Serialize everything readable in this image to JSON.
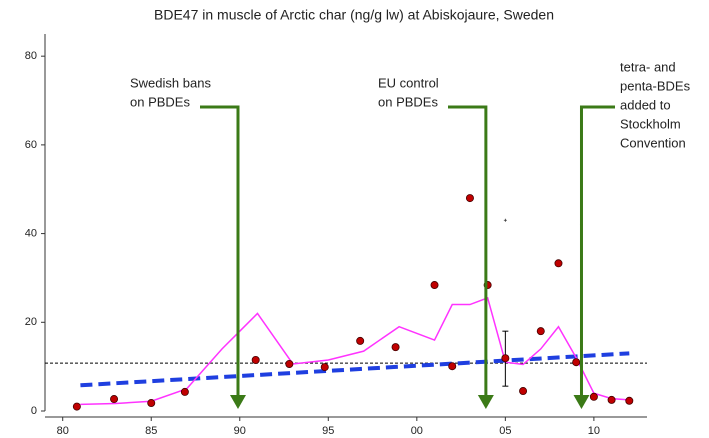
{
  "chart_data": {
    "type": "scatter",
    "title": "BDE47 in muscle of Arctic char (ng/g lw) at Abiskojaure, Sweden",
    "xlim": [
      1979,
      2013
    ],
    "xticks": [
      {
        "value": 1980,
        "label": "80"
      },
      {
        "value": 1985,
        "label": "85"
      },
      {
        "value": 1990,
        "label": "90"
      },
      {
        "value": 1995,
        "label": "95"
      },
      {
        "value": 2000,
        "label": "00"
      },
      {
        "value": 2005,
        "label": "05"
      },
      {
        "value": 2010,
        "label": "10"
      }
    ],
    "ylim": [
      0,
      85
    ],
    "yticks": [
      0,
      20,
      40,
      60,
      80
    ],
    "points": {
      "color": "#c00000",
      "x": [
        1980.8,
        1982.9,
        1985,
        1986.9,
        1990.9,
        1992.8,
        1994.8,
        1996.8,
        1998.8,
        2001,
        2002,
        2003,
        2004,
        2005,
        2006,
        2007,
        2008,
        2009,
        2010,
        2011,
        2012
      ],
      "values": [
        1,
        2.7,
        1.8,
        4.3,
        11.5,
        10.6,
        9.9,
        15.8,
        14.4,
        28.4,
        10.1,
        48,
        28.4,
        11.9,
        4.5,
        18,
        33.3,
        11,
        3.2,
        2.5,
        2.3
      ]
    },
    "mean_line": {
      "color": "#ff33ff",
      "x": [
        1981,
        1983,
        1985,
        1987,
        1989,
        1990,
        1991,
        1993,
        1995,
        1997,
        1999,
        2001,
        2002,
        2003,
        2004,
        2005,
        2006,
        2007,
        2008,
        2009,
        2010,
        2011,
        2012
      ],
      "values": [
        1.5,
        1.7,
        2.2,
        5,
        14,
        18,
        22,
        10.6,
        11.5,
        13.5,
        19,
        16,
        24,
        24,
        25.5,
        11,
        10.5,
        14,
        19,
        12,
        4,
        2.8,
        2.5
      ]
    },
    "trend": {
      "color": "#1f3fe0",
      "x": [
        1981,
        2012
      ],
      "values": [
        5.8,
        13
      ]
    },
    "reference_level": 10.8,
    "error_bar": {
      "x": 2005,
      "low": 5.6,
      "high": 18
    },
    "outliers": {
      "x": [
        2005,
        2009.3
      ],
      "values": [
        43,
        42
      ]
    },
    "annotations": [
      {
        "lines": [
          "Swedish bans",
          "on PBDEs"
        ],
        "x": 1989.9
      },
      {
        "lines": [
          "EU control",
          "on PBDEs"
        ],
        "x": 2003.9
      },
      {
        "lines": [
          "tetra- and",
          "penta-BDEs",
          "added to",
          "Stockholm",
          "Convention"
        ],
        "x": 2009.3
      }
    ],
    "arrow_color": "#3b7a17"
  }
}
